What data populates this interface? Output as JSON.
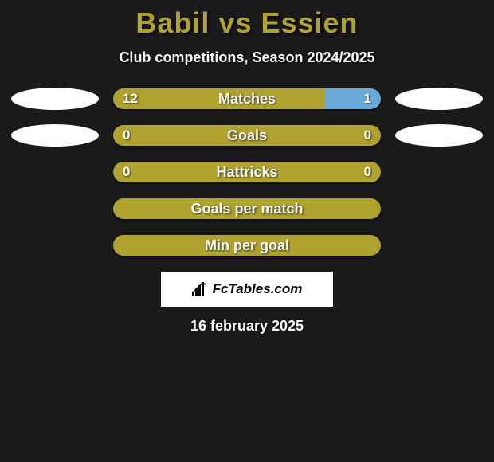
{
  "title_color": "#b0a22f",
  "title": "Babil vs Essien",
  "subtitle": "Club competitions, Season 2024/2025",
  "colors": {
    "olive": "#b0a22f",
    "blue": "#6aa8d8",
    "background": "#1a1a1a",
    "ellipse": "#ffffff",
    "text": "#ffffff"
  },
  "rows": [
    {
      "label": "Matches",
      "left_val": "12",
      "right_val": "1",
      "segments": [
        {
          "color": "#b0a22f",
          "width_pct": 79
        },
        {
          "color": "#6aa8d8",
          "width_pct": 21
        }
      ],
      "show_left_ellipse": true,
      "show_right_ellipse": true
    },
    {
      "label": "Goals",
      "left_val": "0",
      "right_val": "0",
      "segments": [
        {
          "color": "#b0a22f",
          "width_pct": 100
        }
      ],
      "show_left_ellipse": true,
      "show_right_ellipse": true
    },
    {
      "label": "Hattricks",
      "left_val": "0",
      "right_val": "0",
      "segments": [
        {
          "color": "#b0a22f",
          "width_pct": 100
        }
      ],
      "show_left_ellipse": false,
      "show_right_ellipse": false
    },
    {
      "label": "Goals per match",
      "left_val": "",
      "right_val": "",
      "segments": [
        {
          "color": "#b0a22f",
          "width_pct": 100
        }
      ],
      "show_left_ellipse": false,
      "show_right_ellipse": false
    },
    {
      "label": "Min per goal",
      "left_val": "",
      "right_val": "",
      "segments": [
        {
          "color": "#b0a22f",
          "width_pct": 100
        }
      ],
      "show_left_ellipse": false,
      "show_right_ellipse": false
    }
  ],
  "logo_text": "FcTables.com",
  "date_text": "16 february 2025"
}
